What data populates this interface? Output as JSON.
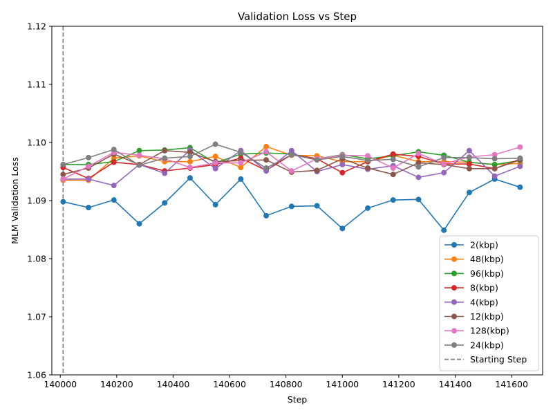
{
  "chart_data": {
    "type": "line",
    "title": "Validation Loss vs Step",
    "xlabel": "Step",
    "ylabel": "MLM Validation Loss",
    "xlim": [
      139970,
      141710
    ],
    "ylim": [
      1.06,
      1.12
    ],
    "xticks": [
      140000,
      140200,
      140400,
      140600,
      140800,
      141000,
      141200,
      141400,
      141600
    ],
    "xtick_labels": [
      "140000",
      "140200",
      "140400",
      "140600",
      "140800",
      "141000",
      "141200",
      "141400",
      "141600"
    ],
    "yticks": [
      1.06,
      1.07,
      1.08,
      1.09,
      1.1,
      1.11,
      1.12
    ],
    "ytick_labels": [
      "1.06",
      "1.07",
      "1.08",
      "1.09",
      "1.10",
      "1.11",
      "1.12"
    ],
    "grid": false,
    "legend_position": "lower-right",
    "x": [
      140010,
      140100,
      140190,
      140280,
      140370,
      140460,
      140550,
      140640,
      140730,
      140820,
      140910,
      141000,
      141090,
      141180,
      141270,
      141360,
      141450,
      141540,
      141630
    ],
    "series": [
      {
        "name": "2(kbp)",
        "color": "#1f77b4",
        "values": [
          1.0898,
          1.0888,
          1.0901,
          1.086,
          1.0896,
          1.0939,
          1.0893,
          1.0937,
          1.0874,
          1.089,
          1.0891,
          1.0852,
          1.0887,
          1.0901,
          1.0902,
          1.0849,
          1.0914,
          1.0937,
          1.0923
        ]
      },
      {
        "name": "48(kbp)",
        "color": "#ff7f0e",
        "values": [
          1.0935,
          1.0935,
          1.0973,
          1.0977,
          1.0967,
          1.0967,
          1.0976,
          1.0957,
          1.0993,
          1.0978,
          1.0977,
          1.0967,
          1.0967,
          1.0978,
          1.0967,
          1.0967,
          1.0966,
          1.0962,
          1.0964
        ]
      },
      {
        "name": "96(kbp)",
        "color": "#2ca02c",
        "values": [
          1.0962,
          1.0962,
          1.0967,
          1.0986,
          1.0987,
          1.0991,
          1.0965,
          1.098,
          1.0982,
          1.098,
          1.0972,
          1.0979,
          1.0972,
          1.0977,
          1.0984,
          1.0978,
          1.0966,
          1.0962,
          1.0969
        ]
      },
      {
        "name": "8(kbp)",
        "color": "#d62728",
        "values": [
          1.0957,
          1.0938,
          1.0966,
          1.0962,
          1.0951,
          1.0956,
          1.0962,
          1.0973,
          1.0952,
          1.0979,
          1.0972,
          1.0948,
          1.0967,
          1.098,
          1.0976,
          1.0963,
          1.0963,
          1.0955,
          1.0971
        ]
      },
      {
        "name": "4(kbp)",
        "color": "#9467bd",
        "values": [
          1.0937,
          1.0937,
          1.0926,
          1.0962,
          1.0947,
          1.0987,
          1.0955,
          1.0986,
          1.0951,
          1.0986,
          1.095,
          1.0962,
          1.0954,
          1.096,
          1.094,
          1.0948,
          1.0986,
          1.0942,
          1.0959
        ]
      },
      {
        "name": "12(kbp)",
        "color": "#8c564b",
        "values": [
          1.0945,
          1.0956,
          1.098,
          1.0962,
          1.0986,
          1.0983,
          1.0967,
          1.0969,
          1.097,
          1.0949,
          1.0952,
          1.0972,
          1.0956,
          1.0945,
          1.0965,
          1.0962,
          1.0955,
          1.0955,
          1.097
        ]
      },
      {
        "name": "128(kbp)",
        "color": "#e377c2",
        "values": [
          1.0937,
          1.0959,
          1.0983,
          1.0978,
          1.0972,
          1.0957,
          1.0965,
          1.0965,
          1.0984,
          1.0951,
          1.0972,
          1.0978,
          1.0977,
          1.0956,
          1.0981,
          1.0963,
          1.0975,
          1.0979,
          1.0992
        ]
      },
      {
        "name": "24(kbp)",
        "color": "#7f7f7f",
        "values": [
          1.0962,
          1.0974,
          1.0988,
          1.0961,
          1.0973,
          1.0976,
          1.0997,
          1.0983,
          1.0956,
          1.0979,
          1.097,
          1.0976,
          1.0969,
          1.0971,
          1.0958,
          1.0974,
          1.0974,
          1.0972,
          1.0973
        ]
      }
    ],
    "reference_line": {
      "name": "Starting Step",
      "x": 140010,
      "color": "#808080",
      "style": "dashed"
    }
  }
}
